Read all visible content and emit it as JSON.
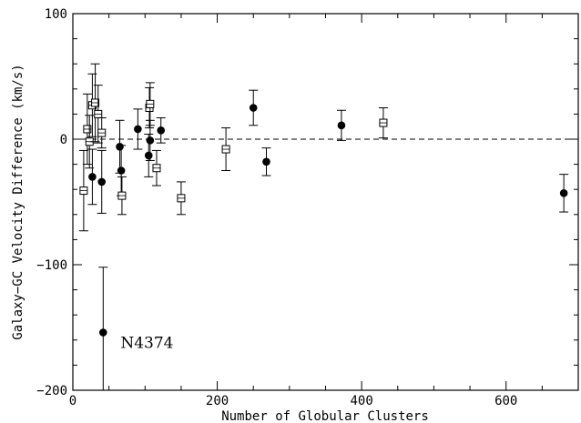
{
  "chart_data": {
    "type": "scatter",
    "xlabel": "Number of Globular Clusters",
    "ylabel": "Galaxy−GC Velocity Difference (km/s)",
    "xlim": [
      0,
      700
    ],
    "ylim": [
      -200,
      100
    ],
    "x_ticks": [
      0,
      200,
      400,
      600
    ],
    "y_ticks": [
      -200,
      -100,
      0,
      100
    ],
    "x_tick_labels": [
      "0",
      "200",
      "400",
      "600"
    ],
    "y_tick_labels": [
      "−200",
      "−100",
      "0",
      "100"
    ],
    "reference_line": {
      "y": 0,
      "style": "dashed"
    },
    "annotation": {
      "text": "N4374",
      "x": 66,
      "y": -154
    },
    "series": [
      {
        "marker": "filled-circle",
        "points": [
          {
            "x": 27,
            "y": -30,
            "err": 22
          },
          {
            "x": 40,
            "y": -34,
            "err": 25
          },
          {
            "x": 42,
            "y": -154,
            "err": 52
          },
          {
            "x": 65,
            "y": -6,
            "err": 21
          },
          {
            "x": 67,
            "y": -25,
            "err": 20
          },
          {
            "x": 90,
            "y": 8,
            "err": 16
          },
          {
            "x": 105,
            "y": -13,
            "err": 17
          },
          {
            "x": 107,
            "y": -1,
            "err": 16
          },
          {
            "x": 122,
            "y": 7,
            "err": 10
          },
          {
            "x": 250,
            "y": 25,
            "err": 14
          },
          {
            "x": 268,
            "y": -18,
            "err": 11
          },
          {
            "x": 372,
            "y": 11,
            "err": 12
          },
          {
            "x": 680,
            "y": -43,
            "err": 15
          }
        ]
      },
      {
        "marker": "open-square",
        "points": [
          {
            "x": 15,
            "y": -41,
            "err": 32
          },
          {
            "x": 20,
            "y": 8,
            "err": 28
          },
          {
            "x": 23,
            "y": -2,
            "err": 21
          },
          {
            "x": 27,
            "y": 27,
            "err": 25
          },
          {
            "x": 31,
            "y": 29,
            "err": 31
          },
          {
            "x": 35,
            "y": 20,
            "err": 23
          },
          {
            "x": 40,
            "y": 5,
            "err": 12
          },
          {
            "x": 68,
            "y": -45,
            "err": 15
          },
          {
            "x": 106,
            "y": 25,
            "err": 16
          },
          {
            "x": 107,
            "y": 28,
            "err": 17
          },
          {
            "x": 116,
            "y": -23,
            "err": 14
          },
          {
            "x": 150,
            "y": -47,
            "err": 13
          },
          {
            "x": 212,
            "y": -8,
            "err": 17
          },
          {
            "x": 430,
            "y": 13,
            "err": 12
          }
        ]
      }
    ]
  }
}
